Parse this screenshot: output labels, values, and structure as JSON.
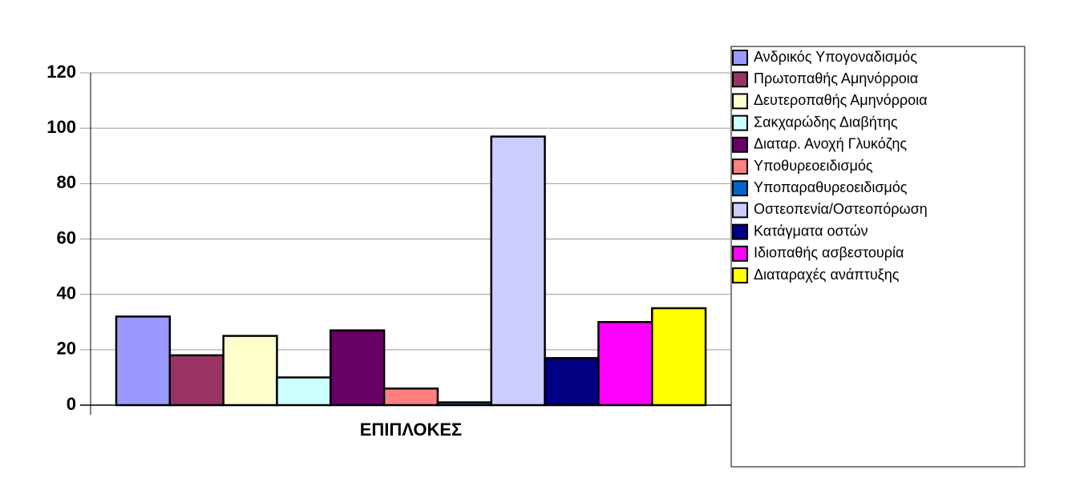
{
  "chart_data": {
    "type": "bar",
    "categories": [
      "ΕΠΙΠΛΟΚΕΣ"
    ],
    "series": [
      {
        "name": "Ανδρικός Υπογοναδισμός",
        "color": "#9999FF",
        "values": [
          32
        ]
      },
      {
        "name": "Πρωτοπαθής Αμηνόρροια",
        "color": "#993366",
        "values": [
          18
        ]
      },
      {
        "name": "Δευτεροπαθής Αμηνόρροια",
        "color": "#FFFFCC",
        "values": [
          25
        ]
      },
      {
        "name": "Σακχαρώδης Διαβήτης",
        "color": "#CCFFFF",
        "values": [
          10
        ]
      },
      {
        "name": "Διαταρ. Ανοχή Γλυκόζης",
        "color": "#660066",
        "values": [
          27
        ]
      },
      {
        "name": "Υποθυρεοειδισμός",
        "color": "#FF8080",
        "values": [
          6
        ]
      },
      {
        "name": "Υποπαραθυρεοειδισμός",
        "color": "#0066CC",
        "values": [
          1
        ]
      },
      {
        "name": "Οστεοπενία/Οστεοπόρωση",
        "color": "#CCCCFF",
        "values": [
          97
        ]
      },
      {
        "name": "Κατάγματα οστών",
        "color": "#000080",
        "values": [
          17
        ]
      },
      {
        "name": "Ιδιοπαθής ασβεστουρία",
        "color": "#FF00FF",
        "values": [
          30
        ]
      },
      {
        "name": "Διαταραχές ανάπτυξης",
        "color": "#FFFF00",
        "values": [
          35
        ]
      }
    ],
    "ylim": [
      0,
      120
    ],
    "yticks": [
      0,
      20,
      40,
      60,
      80,
      100,
      120
    ],
    "grid": true,
    "legend": "right"
  }
}
